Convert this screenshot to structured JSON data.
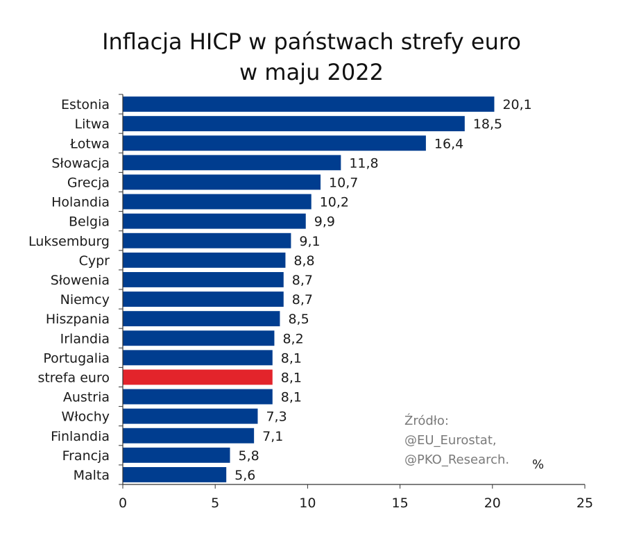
{
  "chart_data": {
    "type": "bar",
    "orientation": "horizontal",
    "title_lines": [
      "Inflacja HICP w państwach strefy euro",
      "w maju 2022"
    ],
    "categories": [
      "Estonia",
      "Litwa",
      "Łotwa",
      "Słowacja",
      "Grecja",
      "Holandia",
      "Belgia",
      "Luksemburg",
      "Cypr",
      "Słowenia",
      "Niemcy",
      "Hiszpania",
      "Irlandia",
      "Portugalia",
      "strefa euro",
      "Austria",
      "Włochy",
      "Finlandia",
      "Francja",
      "Malta"
    ],
    "values": [
      20.1,
      18.5,
      16.4,
      11.8,
      10.7,
      10.2,
      9.9,
      9.1,
      8.8,
      8.7,
      8.7,
      8.5,
      8.2,
      8.1,
      8.1,
      8.1,
      7.3,
      7.1,
      5.8,
      5.6
    ],
    "value_labels": [
      "20,1",
      "18,5",
      "16,4",
      "11,8",
      "10,7",
      "10,2",
      "9,9",
      "9,1",
      "8,8",
      "8,7",
      "8,7",
      "8,5",
      "8,2",
      "8,1",
      "8,1",
      "8,1",
      "7,3",
      "7,1",
      "5,8",
      "5,6"
    ],
    "highlight_category": "strefa euro",
    "xlim": [
      0,
      25
    ],
    "xticks": [
      0,
      5,
      10,
      15,
      20,
      25
    ],
    "unit": "%",
    "source_lines": [
      "Źródło:",
      "@EU_Eurostat,",
      "@PKO_Research."
    ],
    "grid": false,
    "colors": {
      "bar": "#003D8F",
      "highlight": "#E3242B",
      "axis": "#333333",
      "source_text": "#7A7A7A"
    }
  }
}
